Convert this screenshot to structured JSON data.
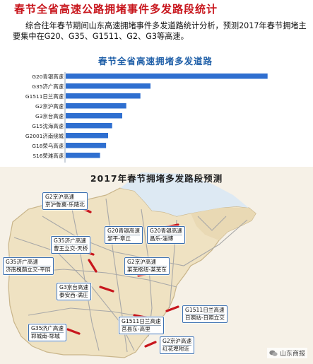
{
  "headline": "春节全省高速公路拥堵事件多发路段统计",
  "intro": "综合往年春节期间山东高速拥堵事件多发道路统计分析，预测2017年春节拥堵主要集中在G20、G35、G1511、G2、G3等高速。",
  "colors": {
    "headline": "#c8161d",
    "bar": "#2f6fd0",
    "axis": "#9aa7b8",
    "route": "#c8161d",
    "callout_border": "#3a6fb0"
  },
  "chart_data": {
    "type": "bar",
    "orientation": "horizontal",
    "title": "春节全省高速拥堵多发道路",
    "categories": [
      "G20青银高速",
      "G35济广高速",
      "G1511日兰高速",
      "G2京沪高速",
      "G3京台高速",
      "G15沈海高速",
      "G2001济南绕城",
      "G18荣乌高速",
      "S16荣潍高速"
    ],
    "values": [
      100,
      42,
      37,
      30,
      28,
      23,
      21,
      20,
      17
    ],
    "xlim": [
      0,
      105
    ],
    "grid": false,
    "legend": "none"
  },
  "map": {
    "title": "2017年春节拥堵多发路段预测",
    "callouts": [
      {
        "line1": "G2京沪高速",
        "line2": "京沪鲁冀-乐陵北"
      },
      {
        "line1": "G20青银高速",
        "line2": "邹平-章丘"
      },
      {
        "line1": "G20青银高速",
        "line2": "昌乐-淄博"
      },
      {
        "line1": "G35济广高速",
        "line2": "曹王立交-天桥"
      },
      {
        "line1": "G35济广高速",
        "line2": "济南槐荫立交-平阴"
      },
      {
        "line1": "G2京沪高速",
        "line2": "莱芜枢纽-莱芜东"
      },
      {
        "line1": "G3京台高速",
        "line2": "泰安西-满庄"
      },
      {
        "line1": "G1511日兰高速",
        "line2": "日照站-日照立交"
      },
      {
        "line1": "G1511日兰高速",
        "line2": "莒县东-高里"
      },
      {
        "line1": "G35济广高速",
        "line2": "郓城南-郓城"
      },
      {
        "line1": "G2京沪高速",
        "line2": "红花埠附近"
      }
    ]
  },
  "watermark": {
    "icon": "wechat-icon",
    "text": "山东商报"
  }
}
